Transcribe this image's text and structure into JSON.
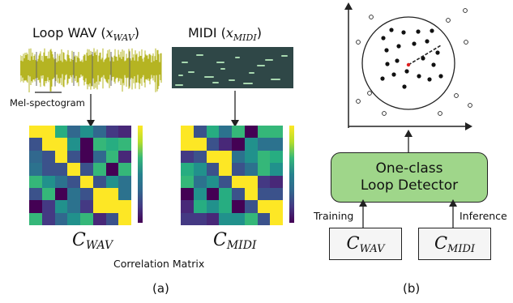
{
  "panel_a": {
    "wav_title_text": "Loop WAV (",
    "wav_title_math": "x",
    "wav_title_sub": "WAV",
    "wav_title_close": ")",
    "midi_title_text": "MIDI (",
    "midi_title_math": "x",
    "midi_title_sub": "MIDI",
    "midi_title_close": ")",
    "mel_label": "Mel-spectogram",
    "wav_matrix_label": "C",
    "wav_matrix_sub": "WAV",
    "midi_matrix_label": "C",
    "midi_matrix_sub": "MIDI",
    "correlation_label": "Correlation Matrix",
    "caption": "(a)"
  },
  "panel_b": {
    "detector_line1": "One-class",
    "detector_line2": "Loop Detector",
    "training_label": "Training",
    "inference_label": "Inference",
    "wav_box_label": "C",
    "wav_box_sub": "WAV",
    "midi_box_label": "C",
    "midi_box_sub": "MIDI",
    "caption": "(b)"
  },
  "colors": {
    "wave": "#b5b422",
    "midi_bg": "#2f4747",
    "midi_note": "#a8d8b0",
    "detector": "#9fd68a",
    "center_dot": "#e02020"
  }
}
